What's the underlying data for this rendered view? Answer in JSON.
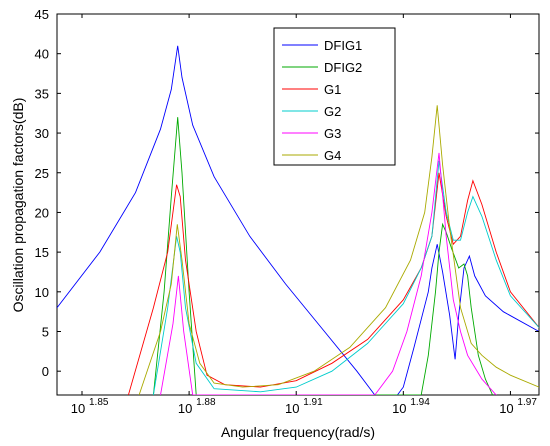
{
  "chart_data": {
    "type": "line",
    "xlabel": "Angular frequency(rad/s)",
    "ylabel": "Oscillation propagation factors(dB)",
    "x_scale": "log",
    "xlim": [
      1.843,
      1.978
    ],
    "ylim": [
      -3,
      45
    ],
    "x_ticks": [
      {
        "exp": 1.85,
        "base": "10",
        "sup": "1.85"
      },
      {
        "exp": 1.88,
        "base": "10",
        "sup": "1.88"
      },
      {
        "exp": 1.91,
        "base": "10",
        "sup": "1.91"
      },
      {
        "exp": 1.94,
        "base": "10",
        "sup": "1.94"
      },
      {
        "exp": 1.97,
        "base": "10",
        "sup": "1.97"
      }
    ],
    "y_ticks": [
      0,
      5,
      10,
      15,
      20,
      25,
      30,
      35,
      40,
      45
    ],
    "grid": false,
    "legend_position": "top-right",
    "series": [
      {
        "name": "DFIG1",
        "color": "#0000ff",
        "x": [
          1.843,
          1.855,
          1.865,
          1.872,
          1.875,
          1.8768,
          1.878,
          1.881,
          1.887,
          1.897,
          1.907,
          1.917,
          1.927,
          1.932,
          1.935,
          1.9375,
          1.94,
          1.943,
          1.947,
          1.948,
          1.9495,
          1.951,
          1.953,
          1.9545,
          1.9555,
          1.957,
          1.9585,
          1.96,
          1.963,
          1.968,
          1.978
        ],
        "y": [
          8.0,
          15.0,
          22.5,
          30.5,
          35.5,
          41.0,
          37.0,
          31.0,
          24.5,
          17.0,
          11.0,
          5.5,
          0.0,
          -3.0,
          -3.5,
          -3.5,
          -2.0,
          3.0,
          10.0,
          13.0,
          16.0,
          12.5,
          7.0,
          1.5,
          7.0,
          13.0,
          14.5,
          12.0,
          9.5,
          7.5,
          5.0
        ]
      },
      {
        "name": "DFIG2",
        "color": "#00aa00",
        "x": [
          1.87,
          1.873,
          1.875,
          1.8768,
          1.878,
          1.88,
          1.882,
          1.945,
          1.947,
          1.949,
          1.95,
          1.951,
          1.952,
          1.9535,
          1.9555,
          1.957,
          1.958,
          1.959,
          1.961,
          1.963,
          1.965
        ],
        "y": [
          -3.0,
          10.0,
          22.0,
          32.0,
          25.0,
          10.0,
          -3.0,
          -3.0,
          2.0,
          10.0,
          15.0,
          18.5,
          17.5,
          15.5,
          13.0,
          13.5,
          12.0,
          8.0,
          2.0,
          -1.0,
          -3.0
        ]
      },
      {
        "name": "G1",
        "color": "#ff0000",
        "x": [
          1.863,
          1.87,
          1.874,
          1.8765,
          1.8775,
          1.879,
          1.882,
          1.885,
          1.89,
          1.9,
          1.91,
          1.92,
          1.93,
          1.94,
          1.945,
          1.948,
          1.95,
          1.952,
          1.954,
          1.956,
          1.958,
          1.9595,
          1.962,
          1.966,
          1.97,
          1.978
        ],
        "y": [
          -3.0,
          8.0,
          15.0,
          23.5,
          22.0,
          14.0,
          5.0,
          -0.5,
          -1.7,
          -2.0,
          -1.2,
          1.0,
          4.0,
          9.0,
          13.0,
          17.0,
          25.0,
          19.5,
          16.0,
          17.0,
          21.5,
          24.0,
          21.0,
          15.0,
          10.0,
          5.5
        ]
      },
      {
        "name": "G2",
        "color": "#00cccc",
        "x": [
          1.87,
          1.874,
          1.8765,
          1.8775,
          1.879,
          1.882,
          1.887,
          1.9,
          1.91,
          1.92,
          1.93,
          1.94,
          1.945,
          1.948,
          1.95,
          1.952,
          1.954,
          1.956,
          1.958,
          1.9595,
          1.962,
          1.966,
          1.97,
          1.978
        ],
        "y": [
          -3.0,
          8.0,
          17.0,
          15.0,
          8.0,
          1.0,
          -2.2,
          -2.6,
          -2.0,
          0.0,
          3.5,
          8.5,
          13.0,
          17.0,
          26.5,
          20.0,
          16.5,
          16.5,
          20.0,
          22.0,
          19.5,
          14.0,
          9.5,
          5.5
        ]
      },
      {
        "name": "G3",
        "color": "#ff00ff",
        "x": [
          1.872,
          1.8755,
          1.877,
          1.8785,
          1.881,
          1.932,
          1.937,
          1.941,
          1.945,
          1.948,
          1.95,
          1.952,
          1.954,
          1.956,
          1.958,
          1.962,
          1.966
        ],
        "y": [
          -3.0,
          6.0,
          12.0,
          5.0,
          -3.0,
          -3.0,
          0.0,
          5.0,
          12.0,
          20.0,
          27.5,
          17.0,
          9.0,
          5.0,
          2.0,
          -1.0,
          -3.0
        ]
      },
      {
        "name": "G4",
        "color": "#aaaa00",
        "x": [
          1.866,
          1.872,
          1.875,
          1.8767,
          1.878,
          1.88,
          1.883,
          1.887,
          1.895,
          1.905,
          1.915,
          1.925,
          1.935,
          1.942,
          1.946,
          1.948,
          1.9495,
          1.951,
          1.953,
          1.956,
          1.959,
          1.962,
          1.966,
          1.97,
          1.978
        ],
        "y": [
          -3.0,
          5.0,
          11.0,
          18.5,
          14.0,
          6.0,
          1.0,
          -1.5,
          -2.0,
          -1.7,
          0.0,
          3.0,
          8.0,
          14.0,
          20.0,
          27.0,
          33.5,
          26.0,
          18.0,
          8.0,
          3.5,
          2.0,
          0.5,
          -0.5,
          -2.0
        ]
      }
    ]
  }
}
